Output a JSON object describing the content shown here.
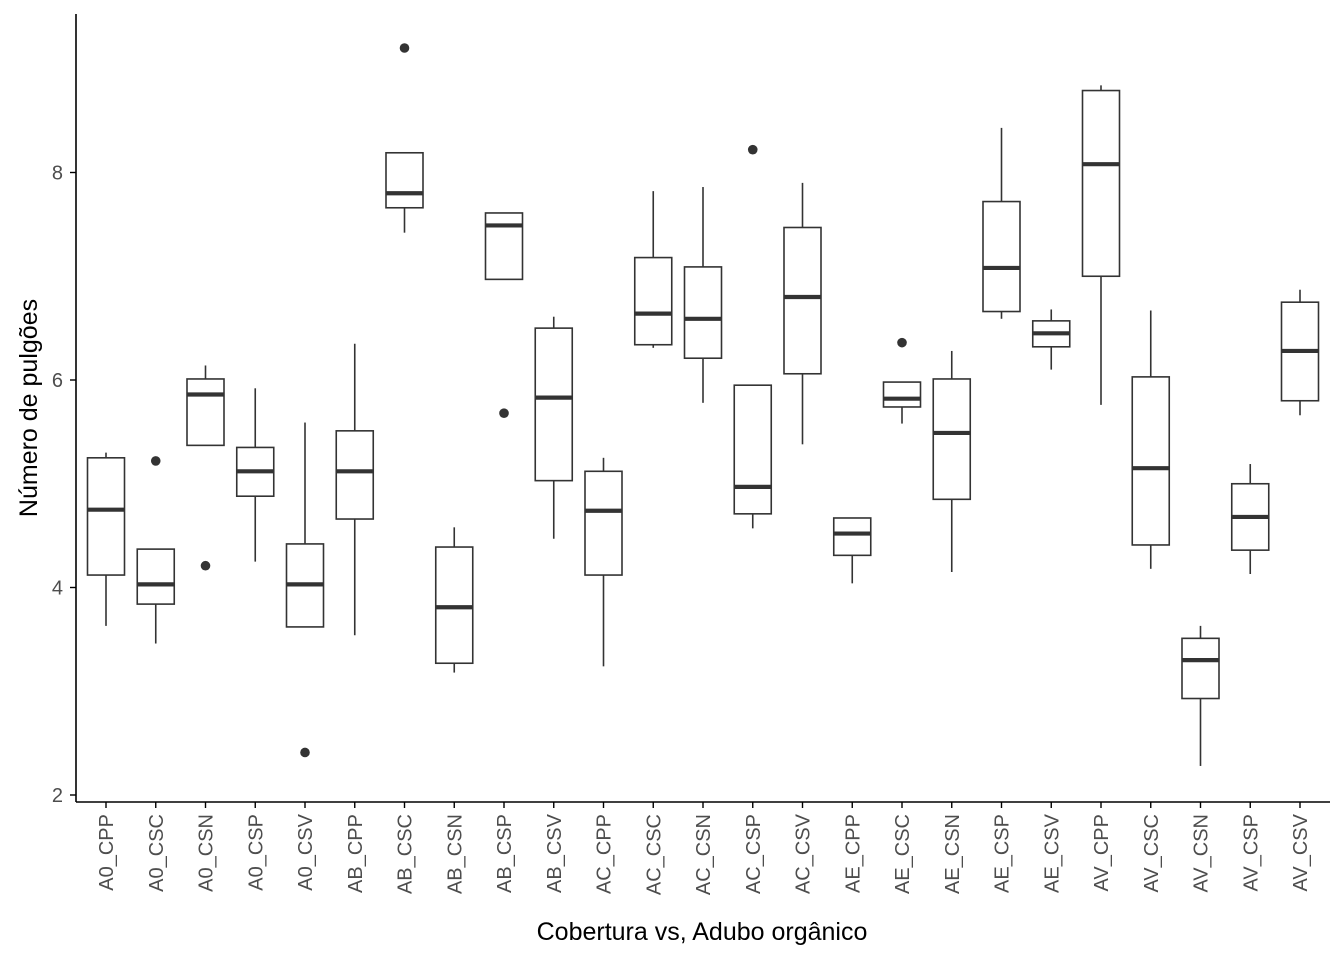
{
  "chart_data": {
    "type": "boxplot",
    "title": "",
    "xlabel": "Cobertura vs, Adubo orgânico",
    "ylabel": "Número de pulgões",
    "ylim": [
      1.93,
      9.75
    ],
    "yticks": [
      2,
      4,
      6,
      8
    ],
    "grid": false,
    "legend": "none",
    "colors": {
      "box_stroke": "#333333",
      "axis": "#000000",
      "tick_label": "#4d4d4d",
      "background": "#ffffff"
    },
    "categories": [
      "A0_CPP",
      "A0_CSC",
      "A0_CSN",
      "A0_CSP",
      "A0_CSV",
      "AB_CPP",
      "AB_CSC",
      "AB_CSN",
      "AB_CSP",
      "AB_CSV",
      "AC_CPP",
      "AC_CSC",
      "AC_CSN",
      "AC_CSP",
      "AC_CSV",
      "AE_CPP",
      "AE_CSC",
      "AE_CSN",
      "AE_CSP",
      "AE_CSV",
      "AV_CPP",
      "AV_CSC",
      "AV_CSN",
      "AV_CSP",
      "AV_CSV"
    ],
    "boxes": [
      {
        "min": 3.63,
        "q1": 4.12,
        "median": 4.75,
        "q3": 5.25,
        "max": 5.3,
        "outliers": []
      },
      {
        "min": 3.46,
        "q1": 3.84,
        "median": 4.03,
        "q3": 4.37,
        "max": 4.37,
        "outliers": [
          5.22
        ]
      },
      {
        "min": 5.37,
        "q1": 5.37,
        "median": 5.86,
        "q3": 6.01,
        "max": 6.14,
        "outliers": [
          4.21
        ]
      },
      {
        "min": 4.25,
        "q1": 4.88,
        "median": 5.12,
        "q3": 5.35,
        "max": 5.92,
        "outliers": []
      },
      {
        "min": 3.62,
        "q1": 3.62,
        "median": 4.03,
        "q3": 4.42,
        "max": 5.59,
        "outliers": [
          2.41
        ]
      },
      {
        "min": 3.54,
        "q1": 4.66,
        "median": 5.12,
        "q3": 5.51,
        "max": 6.35,
        "outliers": []
      },
      {
        "min": 7.42,
        "q1": 7.66,
        "median": 7.8,
        "q3": 8.19,
        "max": 8.19,
        "outliers": [
          9.2
        ]
      },
      {
        "min": 3.18,
        "q1": 3.27,
        "median": 3.81,
        "q3": 4.39,
        "max": 4.58,
        "outliers": []
      },
      {
        "min": 6.97,
        "q1": 6.97,
        "median": 7.49,
        "q3": 7.61,
        "max": 7.61,
        "outliers": [
          5.68
        ]
      },
      {
        "min": 4.47,
        "q1": 5.03,
        "median": 5.83,
        "q3": 6.5,
        "max": 6.61,
        "outliers": []
      },
      {
        "min": 3.24,
        "q1": 4.12,
        "median": 4.74,
        "q3": 5.12,
        "max": 5.25,
        "outliers": []
      },
      {
        "min": 6.31,
        "q1": 6.34,
        "median": 6.64,
        "q3": 7.18,
        "max": 7.82,
        "outliers": []
      },
      {
        "min": 5.78,
        "q1": 6.21,
        "median": 6.59,
        "q3": 7.09,
        "max": 7.86,
        "outliers": []
      },
      {
        "min": 4.57,
        "q1": 4.71,
        "median": 4.97,
        "q3": 5.95,
        "max": 5.95,
        "outliers": [
          8.22
        ]
      },
      {
        "min": 5.38,
        "q1": 6.06,
        "median": 6.8,
        "q3": 7.47,
        "max": 7.9,
        "outliers": []
      },
      {
        "min": 4.04,
        "q1": 4.31,
        "median": 4.52,
        "q3": 4.67,
        "max": 4.67,
        "outliers": []
      },
      {
        "min": 5.58,
        "q1": 5.74,
        "median": 5.82,
        "q3": 5.98,
        "max": 5.98,
        "outliers": [
          6.36
        ]
      },
      {
        "min": 4.15,
        "q1": 4.85,
        "median": 5.49,
        "q3": 6.01,
        "max": 6.28,
        "outliers": []
      },
      {
        "min": 6.59,
        "q1": 6.66,
        "median": 7.08,
        "q3": 7.72,
        "max": 8.43,
        "outliers": []
      },
      {
        "min": 6.1,
        "q1": 6.32,
        "median": 6.45,
        "q3": 6.57,
        "max": 6.68,
        "outliers": []
      },
      {
        "min": 5.76,
        "q1": 7.0,
        "median": 8.08,
        "q3": 8.79,
        "max": 8.84,
        "outliers": []
      },
      {
        "min": 4.18,
        "q1": 4.41,
        "median": 5.15,
        "q3": 6.03,
        "max": 6.67,
        "outliers": []
      },
      {
        "min": 2.28,
        "q1": 2.93,
        "median": 3.3,
        "q3": 3.51,
        "max": 3.63,
        "outliers": []
      },
      {
        "min": 4.13,
        "q1": 4.36,
        "median": 4.68,
        "q3": 5.0,
        "max": 5.19,
        "outliers": []
      },
      {
        "min": 5.66,
        "q1": 5.8,
        "median": 6.28,
        "q3": 6.75,
        "max": 6.87,
        "outliers": []
      }
    ]
  }
}
